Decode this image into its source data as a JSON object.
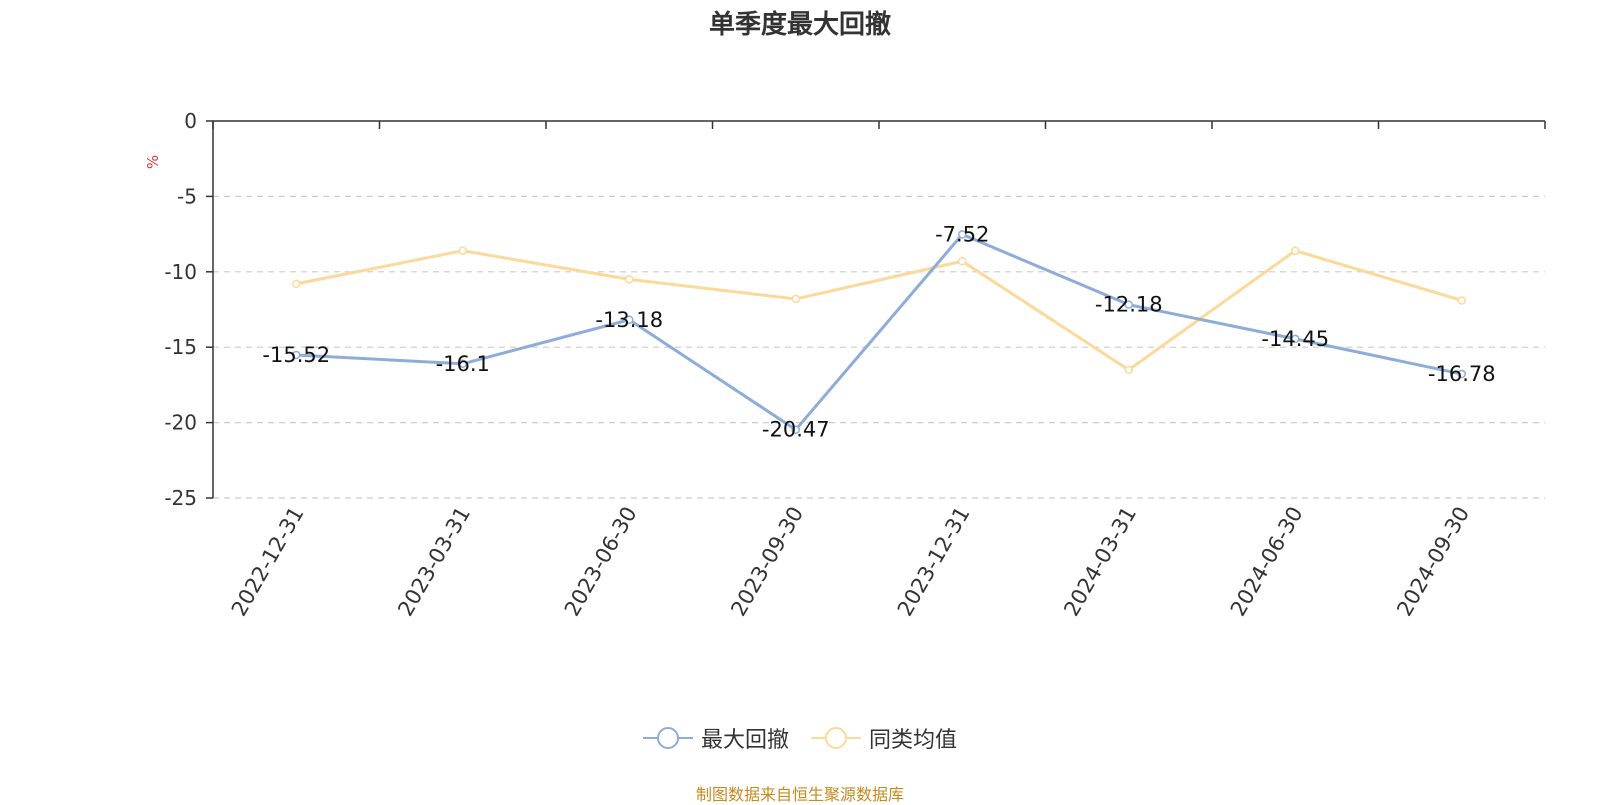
{
  "chart_data": {
    "type": "line",
    "title": "单季度最大回撤",
    "ylabel": "%",
    "xlabel": "",
    "categories": [
      "2022-12-31",
      "2023-03-31",
      "2023-06-30",
      "2023-09-30",
      "2023-12-31",
      "2024-03-31",
      "2024-06-30",
      "2024-09-30"
    ],
    "ylim": [
      -25,
      0
    ],
    "yticks": [
      0,
      -5,
      -10,
      -15,
      -20,
      -25
    ],
    "grid": true,
    "legend_position": "bottom",
    "series": [
      {
        "name": "最大回撤",
        "color": "#8eacd8",
        "values": [
          -15.52,
          -16.1,
          -13.18,
          -20.47,
          -7.52,
          -12.18,
          -14.45,
          -16.78
        ],
        "data_labels": [
          "-15.52",
          "-16.1",
          "-13.18",
          "-20.47",
          "-7.52",
          "-12.18",
          "-14.45",
          "-16.78"
        ]
      },
      {
        "name": "同类均值",
        "color": "#fcd999",
        "values": [
          -10.8,
          -8.6,
          -10.5,
          -11.8,
          -9.3,
          -16.5,
          -8.6,
          -11.9
        ]
      }
    ]
  },
  "footer": {
    "source_text": "制图数据来自恒生聚源数据库"
  },
  "colors": {
    "source_text": "#c9891f",
    "ylabel": "#e8343b",
    "axis": "#333333",
    "grid": "#cccccc"
  }
}
